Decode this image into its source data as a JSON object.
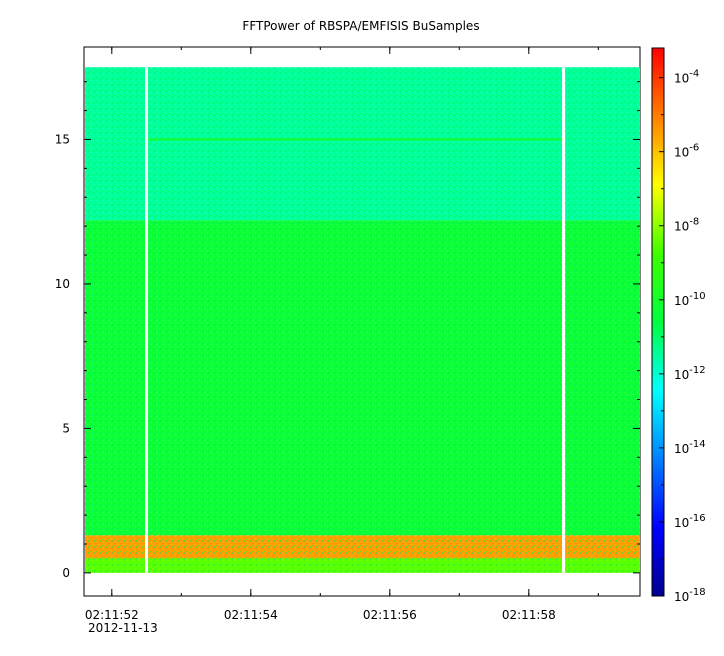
{
  "chart_data": {
    "type": "heatmap",
    "title": "FFTPower of RBSPA/EMFISIS  BuSamples",
    "xlabel": "",
    "ylabel": "",
    "x_date_label": "2012-11-13",
    "x_range": [
      "02:11:51.6",
      "02:11:59.6"
    ],
    "x_ticks": [
      "02:11:52",
      "02:11:54",
      "02:11:56",
      "02:11:58"
    ],
    "ylim": [
      -0.8,
      18.2
    ],
    "y_ticks": [
      "0",
      "5",
      "10",
      "15"
    ],
    "y_tick_values": [
      0,
      5,
      10,
      15
    ],
    "colorbar": {
      "scale": "log",
      "range": [
        "1e-18",
        "1e-3"
      ],
      "ticks": [
        {
          "base": "10",
          "exp": "-4"
        },
        {
          "base": "10",
          "exp": "-6"
        },
        {
          "base": "10",
          "exp": "-8"
        },
        {
          "base": "10",
          "exp": "-10"
        },
        {
          "base": "10",
          "exp": "-12"
        },
        {
          "base": "10",
          "exp": "-14"
        },
        {
          "base": "10",
          "exp": "-16"
        },
        {
          "base": "10",
          "exp": "-18"
        }
      ],
      "tick_log_values": [
        -4,
        -6,
        -8,
        -10,
        -12,
        -14,
        -16,
        -18
      ],
      "log_min": -18,
      "log_max": -3.2
    },
    "data_extent_y": [
      0,
      17.5
    ],
    "gaps_x": [
      "02:11:52.5",
      "02:11:58.5"
    ],
    "bands": [
      {
        "y_range": [
          12.2,
          17.5
        ],
        "log_power": -11.5
      },
      {
        "y_range": [
          1.3,
          12.2
        ],
        "log_power": -10.3
      },
      {
        "y_range": [
          0.5,
          1.3
        ],
        "log_power": -5.5
      },
      {
        "y_range": [
          0,
          0.5
        ],
        "log_power": -8.5
      }
    ],
    "line_feature": {
      "y": 15.0,
      "log_power": -10
    }
  }
}
